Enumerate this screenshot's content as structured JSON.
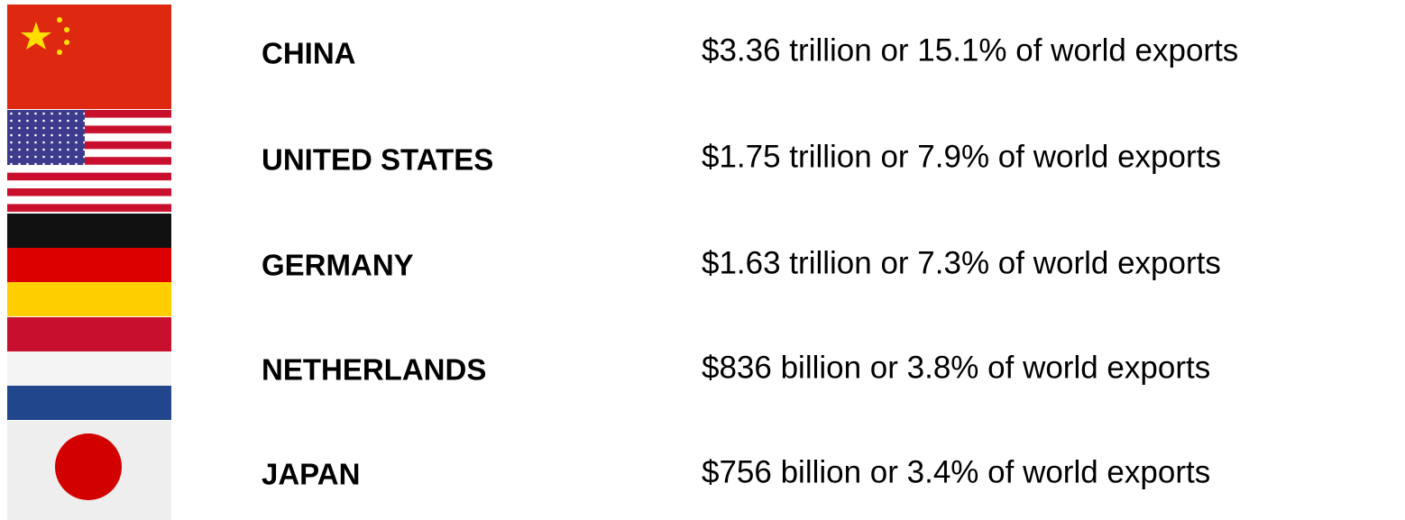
{
  "rows": [
    {
      "country": "CHINA",
      "text": "$3.36 trillion or 15.1% of world exports"
    },
    {
      "country": "UNITED STATES",
      "text": "$1.75 trillion or 7.9% of world exports"
    },
    {
      "country": "GERMANY",
      "text": "$1.63 trillion or 7.3% of world exports"
    },
    {
      "country": "NETHERLANDS",
      "text": "$836 billion or 3.8% of world exports"
    },
    {
      "country": "JAPAN",
      "text": "$756 billion or 3.4% of world exports"
    }
  ]
}
